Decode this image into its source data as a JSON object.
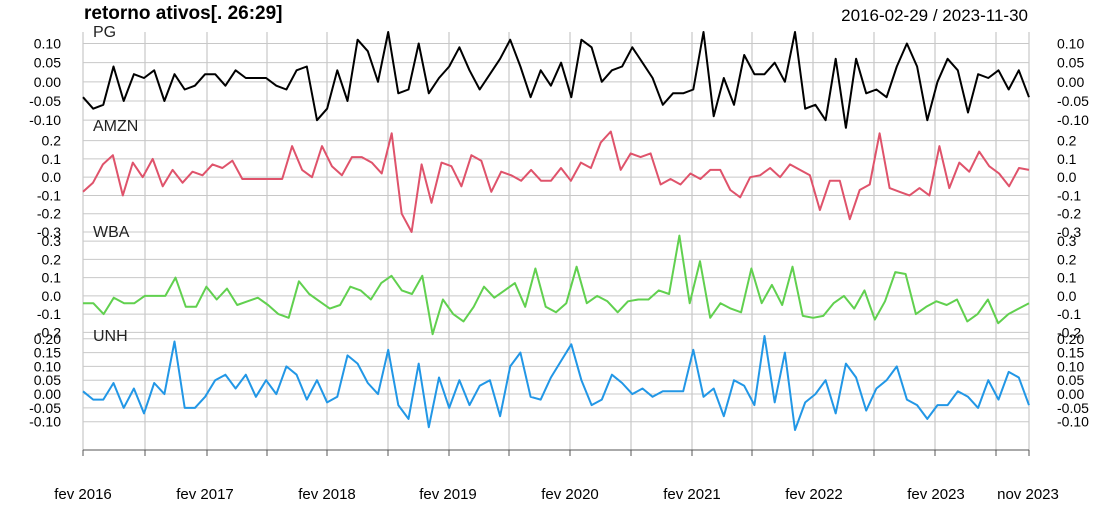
{
  "chart_data": {
    "type": "line",
    "title": "retorno  ativos[. 26:29]",
    "date_range": "2016-02-29 / 2023-11-30",
    "x_ticks": [
      "fev 2016",
      "fev 2017",
      "fev 2018",
      "fev 2019",
      "fev 2020",
      "fev 2021",
      "fev 2022",
      "fev 2023",
      "nov 2023"
    ],
    "grid": true,
    "panels": [
      {
        "name": "PG",
        "color": "#000000",
        "ylim": [
          -0.11,
          0.13
        ],
        "ticks": [
          "0.10",
          "0.05",
          "0.00",
          "-0.05",
          "-0.10"
        ],
        "tick_values": [
          0.1,
          0.05,
          0.0,
          -0.05,
          -0.1
        ],
        "values": [
          -0.04,
          -0.07,
          -0.06,
          0.04,
          -0.05,
          0.02,
          0.01,
          0.03,
          -0.05,
          0.02,
          -0.02,
          -0.01,
          0.02,
          0.02,
          -0.01,
          0.03,
          0.01,
          0.01,
          0.01,
          -0.01,
          -0.02,
          0.03,
          0.04,
          -0.1,
          -0.07,
          0.03,
          -0.05,
          0.11,
          0.08,
          0.0,
          0.13,
          -0.03,
          -0.02,
          0.1,
          -0.03,
          0.01,
          0.04,
          0.09,
          0.03,
          -0.02,
          0.02,
          0.06,
          0.11,
          0.04,
          -0.04,
          0.03,
          -0.01,
          0.05,
          -0.04,
          0.11,
          0.09,
          0.0,
          0.03,
          0.04,
          0.09,
          0.05,
          0.01,
          -0.06,
          -0.03,
          -0.03,
          -0.02,
          0.13,
          -0.09,
          0.01,
          -0.06,
          0.07,
          0.02,
          0.02,
          0.05,
          0.0,
          0.13,
          -0.07,
          -0.06,
          -0.1,
          0.06,
          -0.12,
          0.06,
          -0.03,
          -0.02,
          -0.04,
          0.04,
          0.1,
          0.04,
          -0.1,
          0.0,
          0.06,
          0.03,
          -0.08,
          0.02,
          0.01,
          0.03,
          -0.02,
          0.03,
          -0.04
        ]
      },
      {
        "name": "AMZN",
        "color": "#DF536B",
        "ylim": [
          -0.3,
          0.28
        ],
        "ticks": [
          "0.2",
          "0.1",
          "0.0",
          "-0.1",
          "-0.2",
          "-0.3"
        ],
        "tick_values": [
          0.2,
          0.1,
          0.0,
          -0.1,
          -0.2,
          -0.3
        ],
        "values": [
          -0.08,
          -0.03,
          0.07,
          0.12,
          -0.1,
          0.08,
          0.0,
          0.1,
          -0.05,
          0.04,
          -0.03,
          0.03,
          0.01,
          0.07,
          0.05,
          0.09,
          -0.01,
          -0.01,
          -0.01,
          -0.01,
          -0.01,
          0.17,
          0.04,
          0.0,
          0.17,
          0.06,
          0.01,
          0.11,
          0.11,
          0.08,
          0.02,
          0.24,
          -0.2,
          -0.3,
          0.07,
          -0.14,
          0.08,
          0.06,
          -0.05,
          0.12,
          0.09,
          -0.08,
          0.03,
          0.01,
          -0.02,
          0.04,
          -0.02,
          -0.02,
          0.05,
          -0.02,
          0.08,
          0.05,
          0.19,
          0.25,
          0.04,
          0.13,
          0.11,
          0.13,
          -0.04,
          -0.01,
          -0.04,
          0.02,
          -0.01,
          0.04,
          0.04,
          -0.07,
          -0.11,
          0.0,
          0.01,
          0.05,
          0.0,
          0.07,
          0.04,
          0.01,
          -0.18,
          -0.02,
          -0.02,
          -0.23,
          -0.07,
          -0.04,
          0.24,
          -0.06,
          -0.08,
          -0.1,
          -0.06,
          -0.1,
          0.17,
          -0.06,
          0.08,
          0.03,
          0.14,
          0.06,
          0.02,
          -0.05,
          0.05,
          0.04
        ]
      },
      {
        "name": "WBA",
        "color": "#61D04F",
        "ylim": [
          -0.22,
          0.35
        ],
        "ticks": [
          "0.3",
          "0.2",
          "0.1",
          "0.0",
          "-0.1",
          "-0.2"
        ],
        "tick_values": [
          0.3,
          0.2,
          0.1,
          0.0,
          -0.1,
          -0.2
        ],
        "values": [
          -0.04,
          -0.04,
          -0.1,
          -0.01,
          -0.04,
          -0.04,
          0.0,
          0.0,
          0.0,
          0.1,
          -0.06,
          -0.06,
          0.05,
          -0.02,
          0.04,
          -0.05,
          -0.03,
          -0.01,
          -0.05,
          -0.1,
          -0.12,
          0.08,
          0.01,
          -0.03,
          -0.07,
          -0.05,
          0.05,
          0.03,
          -0.02,
          0.07,
          0.11,
          0.03,
          0.01,
          0.11,
          -0.21,
          -0.02,
          -0.1,
          -0.14,
          -0.06,
          0.05,
          -0.01,
          0.03,
          0.07,
          -0.06,
          0.15,
          -0.06,
          -0.09,
          -0.04,
          0.16,
          -0.04,
          0.0,
          -0.03,
          -0.09,
          -0.03,
          -0.02,
          -0.02,
          0.03,
          0.01,
          0.33,
          -0.04,
          0.19,
          -0.12,
          -0.04,
          -0.07,
          -0.09,
          0.15,
          -0.04,
          0.06,
          -0.05,
          0.16,
          -0.11,
          -0.12,
          -0.11,
          -0.04,
          0.0,
          -0.07,
          0.03,
          -0.13,
          -0.03,
          0.13,
          0.12,
          -0.1,
          -0.06,
          -0.03,
          -0.05,
          -0.02,
          -0.14,
          -0.1,
          -0.02,
          -0.15,
          -0.1,
          -0.07,
          -0.04
        ]
      },
      {
        "name": "UNH",
        "color": "#2297E6",
        "ylim": [
          -0.13,
          0.21
        ],
        "ticks": [
          "0.20",
          "0.15",
          "0.10",
          "0.05",
          "0.00",
          "-0.05",
          "-0.10"
        ],
        "tick_values": [
          0.2,
          0.15,
          0.1,
          0.05,
          0.0,
          -0.05,
          -0.1
        ],
        "values": [
          0.01,
          -0.02,
          -0.02,
          0.04,
          -0.05,
          0.02,
          -0.07,
          0.04,
          0.0,
          0.19,
          -0.05,
          -0.05,
          -0.01,
          0.05,
          0.07,
          0.02,
          0.07,
          -0.01,
          0.05,
          0.0,
          0.1,
          0.07,
          -0.02,
          0.05,
          -0.03,
          -0.01,
          0.14,
          0.11,
          0.04,
          0.0,
          0.16,
          -0.04,
          -0.09,
          0.11,
          -0.12,
          0.06,
          -0.05,
          0.05,
          -0.04,
          0.03,
          0.05,
          -0.08,
          0.1,
          0.15,
          -0.01,
          -0.02,
          0.06,
          0.12,
          0.18,
          0.05,
          -0.04,
          -0.02,
          0.07,
          0.04,
          0.0,
          0.02,
          -0.01,
          0.01,
          0.01,
          0.01,
          0.16,
          -0.01,
          0.02,
          -0.08,
          0.05,
          0.03,
          -0.04,
          0.21,
          -0.03,
          0.15,
          -0.13,
          -0.03,
          0.0,
          0.05,
          -0.07,
          0.11,
          0.06,
          -0.06,
          0.02,
          0.05,
          0.1,
          -0.02,
          -0.04,
          -0.09,
          -0.04,
          -0.04,
          0.01,
          -0.01,
          -0.05,
          0.05,
          -0.02,
          0.08,
          0.06,
          -0.04
        ]
      }
    ]
  }
}
